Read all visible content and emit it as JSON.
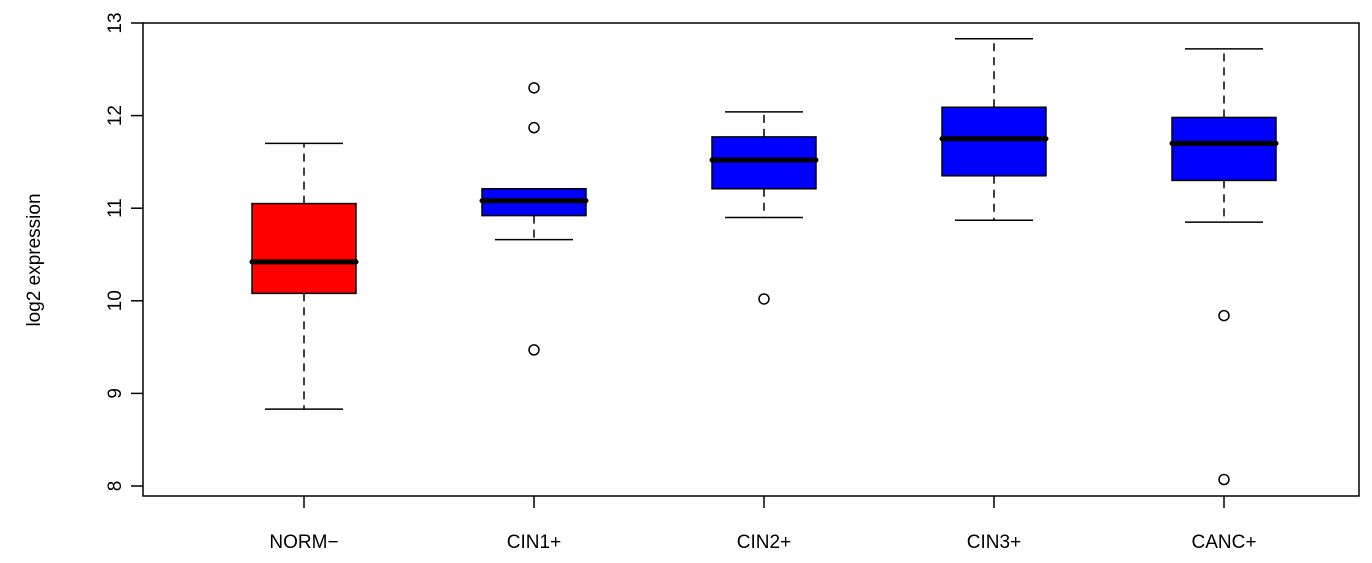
{
  "chart_data": {
    "type": "boxplot",
    "title": "",
    "xlabel": "",
    "ylabel": "log2 expression",
    "ylim": [
      8,
      13
    ],
    "yticks": [
      8,
      9,
      10,
      11,
      12,
      13
    ],
    "categories": [
      "NORM−",
      "CIN1+",
      "CIN2+",
      "CIN3+",
      "CANC+"
    ],
    "groups": [
      {
        "label": "NORM−",
        "color": "#ff0000",
        "whisker_low": 8.83,
        "q1": 10.08,
        "median": 10.42,
        "q3": 11.05,
        "whisker_high": 11.7,
        "outliers": []
      },
      {
        "label": "CIN1+",
        "color": "#0000ff",
        "whisker_low": 10.66,
        "q1": 10.92,
        "median": 11.08,
        "q3": 11.21,
        "whisker_high": 11.21,
        "outliers": [
          12.3,
          11.87,
          9.47
        ]
      },
      {
        "label": "CIN2+",
        "color": "#0000ff",
        "whisker_low": 10.9,
        "q1": 11.21,
        "median": 11.52,
        "q3": 11.77,
        "whisker_high": 12.04,
        "outliers": [
          10.02
        ]
      },
      {
        "label": "CIN3+",
        "color": "#0000ff",
        "whisker_low": 10.87,
        "q1": 11.35,
        "median": 11.75,
        "q3": 12.09,
        "whisker_high": 12.83,
        "outliers": []
      },
      {
        "label": "CANC+",
        "color": "#0000ff",
        "whisker_low": 10.85,
        "q1": 11.3,
        "median": 11.7,
        "q3": 11.98,
        "whisker_high": 12.72,
        "outliers": [
          9.84,
          8.07
        ]
      }
    ]
  }
}
